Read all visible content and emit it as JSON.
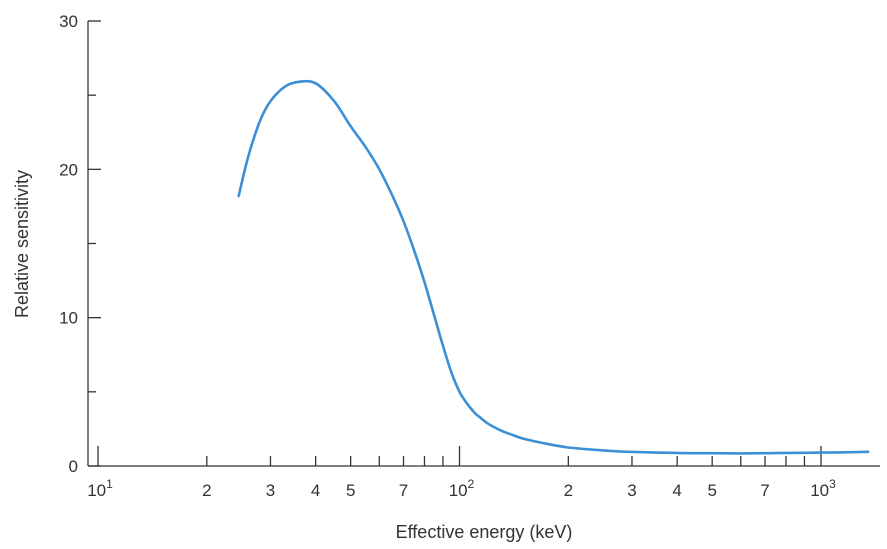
{
  "chart_data": {
    "type": "line",
    "title": "",
    "xlabel": "Effective energy (keV)",
    "ylabel": "Relative sensitivity",
    "x_scale": "log",
    "xlim": [
      10,
      1400
    ],
    "ylim": [
      0,
      30
    ],
    "grid": false,
    "legend": "none",
    "curve_color": "#3b8fd6",
    "axis_color": "#333333",
    "y_ticks": [
      {
        "value": 0,
        "label": "0"
      },
      {
        "value": 10,
        "label": "10"
      },
      {
        "value": 20,
        "label": "20"
      },
      {
        "value": 30,
        "label": "30"
      }
    ],
    "y_minor_ticks": [
      5,
      15,
      25
    ],
    "x_major_ticks": [
      {
        "value": 10,
        "mantissa": "10",
        "exponent": "1"
      },
      {
        "value": 100,
        "mantissa": "10",
        "exponent": "2"
      },
      {
        "value": 1000,
        "mantissa": "10",
        "exponent": "3"
      }
    ],
    "x_minor_ticks": [
      {
        "value": 20,
        "label": "2"
      },
      {
        "value": 30,
        "label": "3"
      },
      {
        "value": 40,
        "label": "4"
      },
      {
        "value": 50,
        "label": "5"
      },
      {
        "value": 60,
        "label": ""
      },
      {
        "value": 70,
        "label": "7"
      },
      {
        "value": 80,
        "label": ""
      },
      {
        "value": 90,
        "label": ""
      },
      {
        "value": 200,
        "label": "2"
      },
      {
        "value": 300,
        "label": "3"
      },
      {
        "value": 400,
        "label": "4"
      },
      {
        "value": 500,
        "label": "5"
      },
      {
        "value": 600,
        "label": ""
      },
      {
        "value": 700,
        "label": "7"
      },
      {
        "value": 800,
        "label": ""
      },
      {
        "value": 900,
        "label": ""
      }
    ],
    "series": [
      {
        "x": [
          24.5,
          26,
          28,
          30,
          33,
          36,
          40,
          45,
          50,
          55,
          60,
          65,
          70,
          75,
          80,
          85,
          90,
          95,
          100,
          105,
          110,
          115,
          120,
          130,
          140,
          150,
          170,
          200,
          250,
          300,
          400,
          500,
          600,
          700,
          800,
          1000,
          1200,
          1350
        ],
        "y": [
          18.2,
          20.8,
          23.2,
          24.6,
          25.6,
          25.9,
          25.8,
          24.6,
          22.9,
          21.5,
          20.0,
          18.3,
          16.5,
          14.5,
          12.4,
          10.2,
          8.1,
          6.3,
          5.0,
          4.2,
          3.6,
          3.2,
          2.85,
          2.4,
          2.1,
          1.85,
          1.55,
          1.25,
          1.05,
          0.95,
          0.88,
          0.86,
          0.85,
          0.86,
          0.88,
          0.9,
          0.93,
          0.96
        ]
      }
    ]
  }
}
